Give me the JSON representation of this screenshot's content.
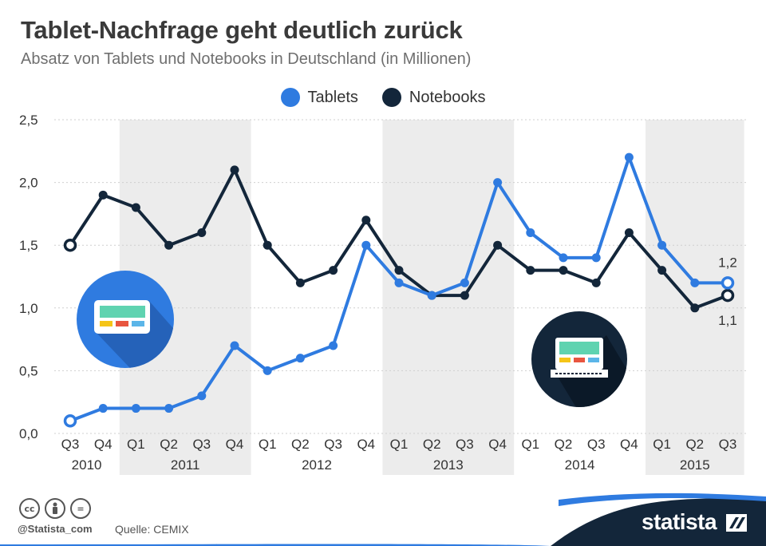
{
  "title": "Tablet-Nachfrage geht deutlich zurück",
  "subtitle": "Absatz von Tablets und Notebooks in Deutschland (in Millionen)",
  "legend": [
    {
      "label": "Tablets",
      "color": "#2f7be0"
    },
    {
      "label": "Notebooks",
      "color": "#13263a"
    }
  ],
  "chart_data": {
    "type": "line",
    "title": "Tablet-Nachfrage geht deutlich zurück",
    "subtitle": "Absatz von Tablets und Notebooks in Deutschland (in Millionen)",
    "xlabel": "",
    "ylabel": "",
    "ylim": [
      0,
      2.5
    ],
    "y_ticks": [
      "0,0",
      "0,5",
      "1,0",
      "1,5",
      "2,0",
      "2,5"
    ],
    "y_tick_values": [
      0,
      0.5,
      1,
      1.5,
      2,
      2.5
    ],
    "categories": [
      "Q3",
      "Q4",
      "Q1",
      "Q2",
      "Q3",
      "Q4",
      "Q1",
      "Q2",
      "Q3",
      "Q4",
      "Q1",
      "Q2",
      "Q3",
      "Q4",
      "Q1",
      "Q2",
      "Q3",
      "Q4",
      "Q1",
      "Q2",
      "Q3"
    ],
    "years": [
      {
        "label": "2010",
        "quarters": 2,
        "shaded": false
      },
      {
        "label": "2011",
        "quarters": 4,
        "shaded": true
      },
      {
        "label": "2012",
        "quarters": 4,
        "shaded": false
      },
      {
        "label": "2013",
        "quarters": 4,
        "shaded": true
      },
      {
        "label": "2014",
        "quarters": 4,
        "shaded": false
      },
      {
        "label": "2015",
        "quarters": 3,
        "shaded": true
      }
    ],
    "series": [
      {
        "name": "Tablets",
        "color": "#2f7be0",
        "values": [
          0.1,
          0.2,
          0.2,
          0.2,
          0.3,
          0.7,
          0.5,
          0.6,
          0.7,
          1.5,
          1.2,
          1.1,
          1.2,
          2.0,
          1.6,
          1.4,
          1.4,
          2.2,
          1.5,
          1.2,
          1.2
        ]
      },
      {
        "name": "Notebooks",
        "color": "#13263a",
        "values": [
          1.5,
          1.9,
          1.8,
          1.5,
          1.6,
          2.1,
          1.5,
          1.2,
          1.3,
          1.7,
          1.3,
          1.1,
          1.1,
          1.5,
          1.3,
          1.3,
          1.2,
          1.6,
          1.3,
          1.0,
          1.1
        ]
      }
    ],
    "annotations": [
      {
        "series": "Tablets",
        "text": "1,2",
        "position": "above-last"
      },
      {
        "series": "Notebooks",
        "text": "1,1",
        "position": "below-last"
      }
    ]
  },
  "footer": {
    "handle": "@Statista_com",
    "source": "Quelle: CEMIX",
    "brand": "statista",
    "license_icons": [
      "cc",
      "by",
      "="
    ]
  }
}
